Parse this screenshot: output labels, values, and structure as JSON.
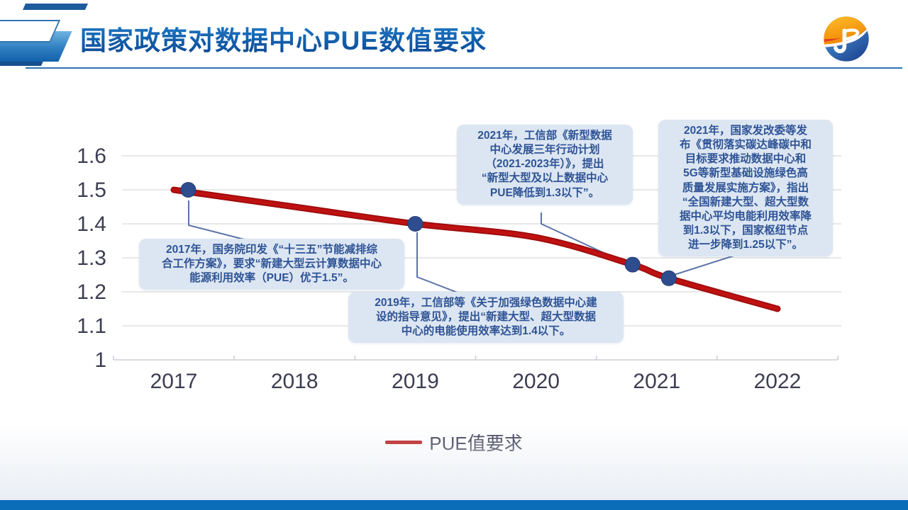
{
  "slide": {
    "title": "国家政策对数据中心PUE数值要求"
  },
  "colors": {
    "title_blue": "#1360B0",
    "header_rule": "#2E74B5",
    "footer_bar": "#0B6CB8",
    "series_red": "#BE1111",
    "marker_blue": "#2E4D8F",
    "callout_bg": "#DCE6F2",
    "callout_text": "#2E5395",
    "connector": "#5B73A8",
    "gridline": "#D9D9D9",
    "axis_text": "#3D3D52"
  },
  "icons": {
    "logo": "company-logo"
  },
  "chart_data": {
    "type": "line",
    "title": "",
    "xlabel": "",
    "ylabel": "",
    "categories": [
      2017,
      2018,
      2019,
      2020,
      2021,
      2022
    ],
    "yticks": [
      1,
      1.1,
      1.2,
      1.3,
      1.4,
      1.5,
      1.6
    ],
    "ytick_labels": [
      "1",
      "1.1",
      "1.2",
      "1.3",
      "1.4",
      "1.5",
      "1.6"
    ],
    "ylim": [
      1,
      1.6
    ],
    "xlim": [
      2016.5,
      2022.5
    ],
    "grid": true,
    "legend_position": "bottom",
    "series": [
      {
        "name": "PUE值要求",
        "color": "#BE1111",
        "points": [
          {
            "x": 2017,
            "y": 1.5
          },
          {
            "x": 2018,
            "y": 1.45
          },
          {
            "x": 2019,
            "y": 1.4
          },
          {
            "x": 2020,
            "y": 1.36
          },
          {
            "x": 2020.8,
            "y": 1.28
          },
          {
            "x": 2021.1,
            "y": 1.24
          },
          {
            "x": 2022,
            "y": 1.15
          }
        ]
      }
    ],
    "markers": [
      {
        "x": 2017.12,
        "y": 1.5
      },
      {
        "x": 2019,
        "y": 1.4
      },
      {
        "x": 2020.8,
        "y": 1.28
      },
      {
        "x": 2021.1,
        "y": 1.24
      }
    ]
  },
  "callouts": [
    {
      "id": "2017-state-council",
      "text": "2017年，国务院印发《“十三五”节能减排综\n合工作方案》，要求“新建大型云计算数据中心\n能源利用效率（PUE）优于1.5”。"
    },
    {
      "id": "2019-miit",
      "text": "2019年，工信部等《关于加强绿色数据中心建\n设的指导意见》，提出“新建大型、超大型数据\n中心的电能使用效率达到1.4以下。"
    },
    {
      "id": "2021-miit",
      "text": "2021年，工信部《新型数据\n中心发展三年行动计划\n（2021-2023年）》，提出\n“新型大型及以上数据中心\nPUE降低到1.3以下”。"
    },
    {
      "id": "2021-ndrc",
      "text": "2021年，国家发改委等发\n布《贯彻落实碳达峰碳中和\n目标要求推动数据中心和\n5G等新型基础设施绿色高\n质量发展实施方案》，指出\n“全国新建大型、超大型数\n据中心平均电能利用效率降\n到1.3以下，国家枢纽节点\n进一步降到1.25以下”。"
    }
  ],
  "legend": {
    "label": "PUE值要求"
  }
}
